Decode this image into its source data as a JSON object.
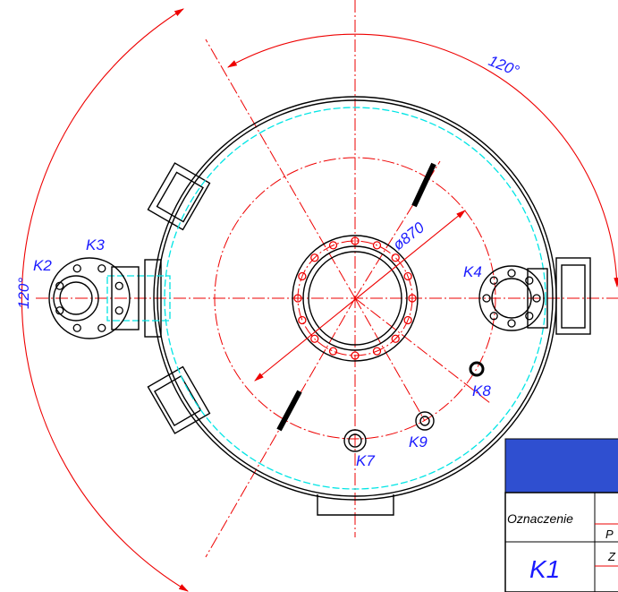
{
  "dimensions": {
    "angle_top": "120°",
    "angle_left": "120°",
    "diameter": "ø870"
  },
  "nozzles": [
    {
      "label": "K2"
    },
    {
      "label": "K3"
    },
    {
      "label": "K4"
    },
    {
      "label": "K7"
    },
    {
      "label": "K8"
    },
    {
      "label": "K9"
    }
  ],
  "table": {
    "header_col1": "Oznaczenie",
    "header_col2": "P",
    "row1_col1": "K1",
    "row1_col2": "Z"
  }
}
